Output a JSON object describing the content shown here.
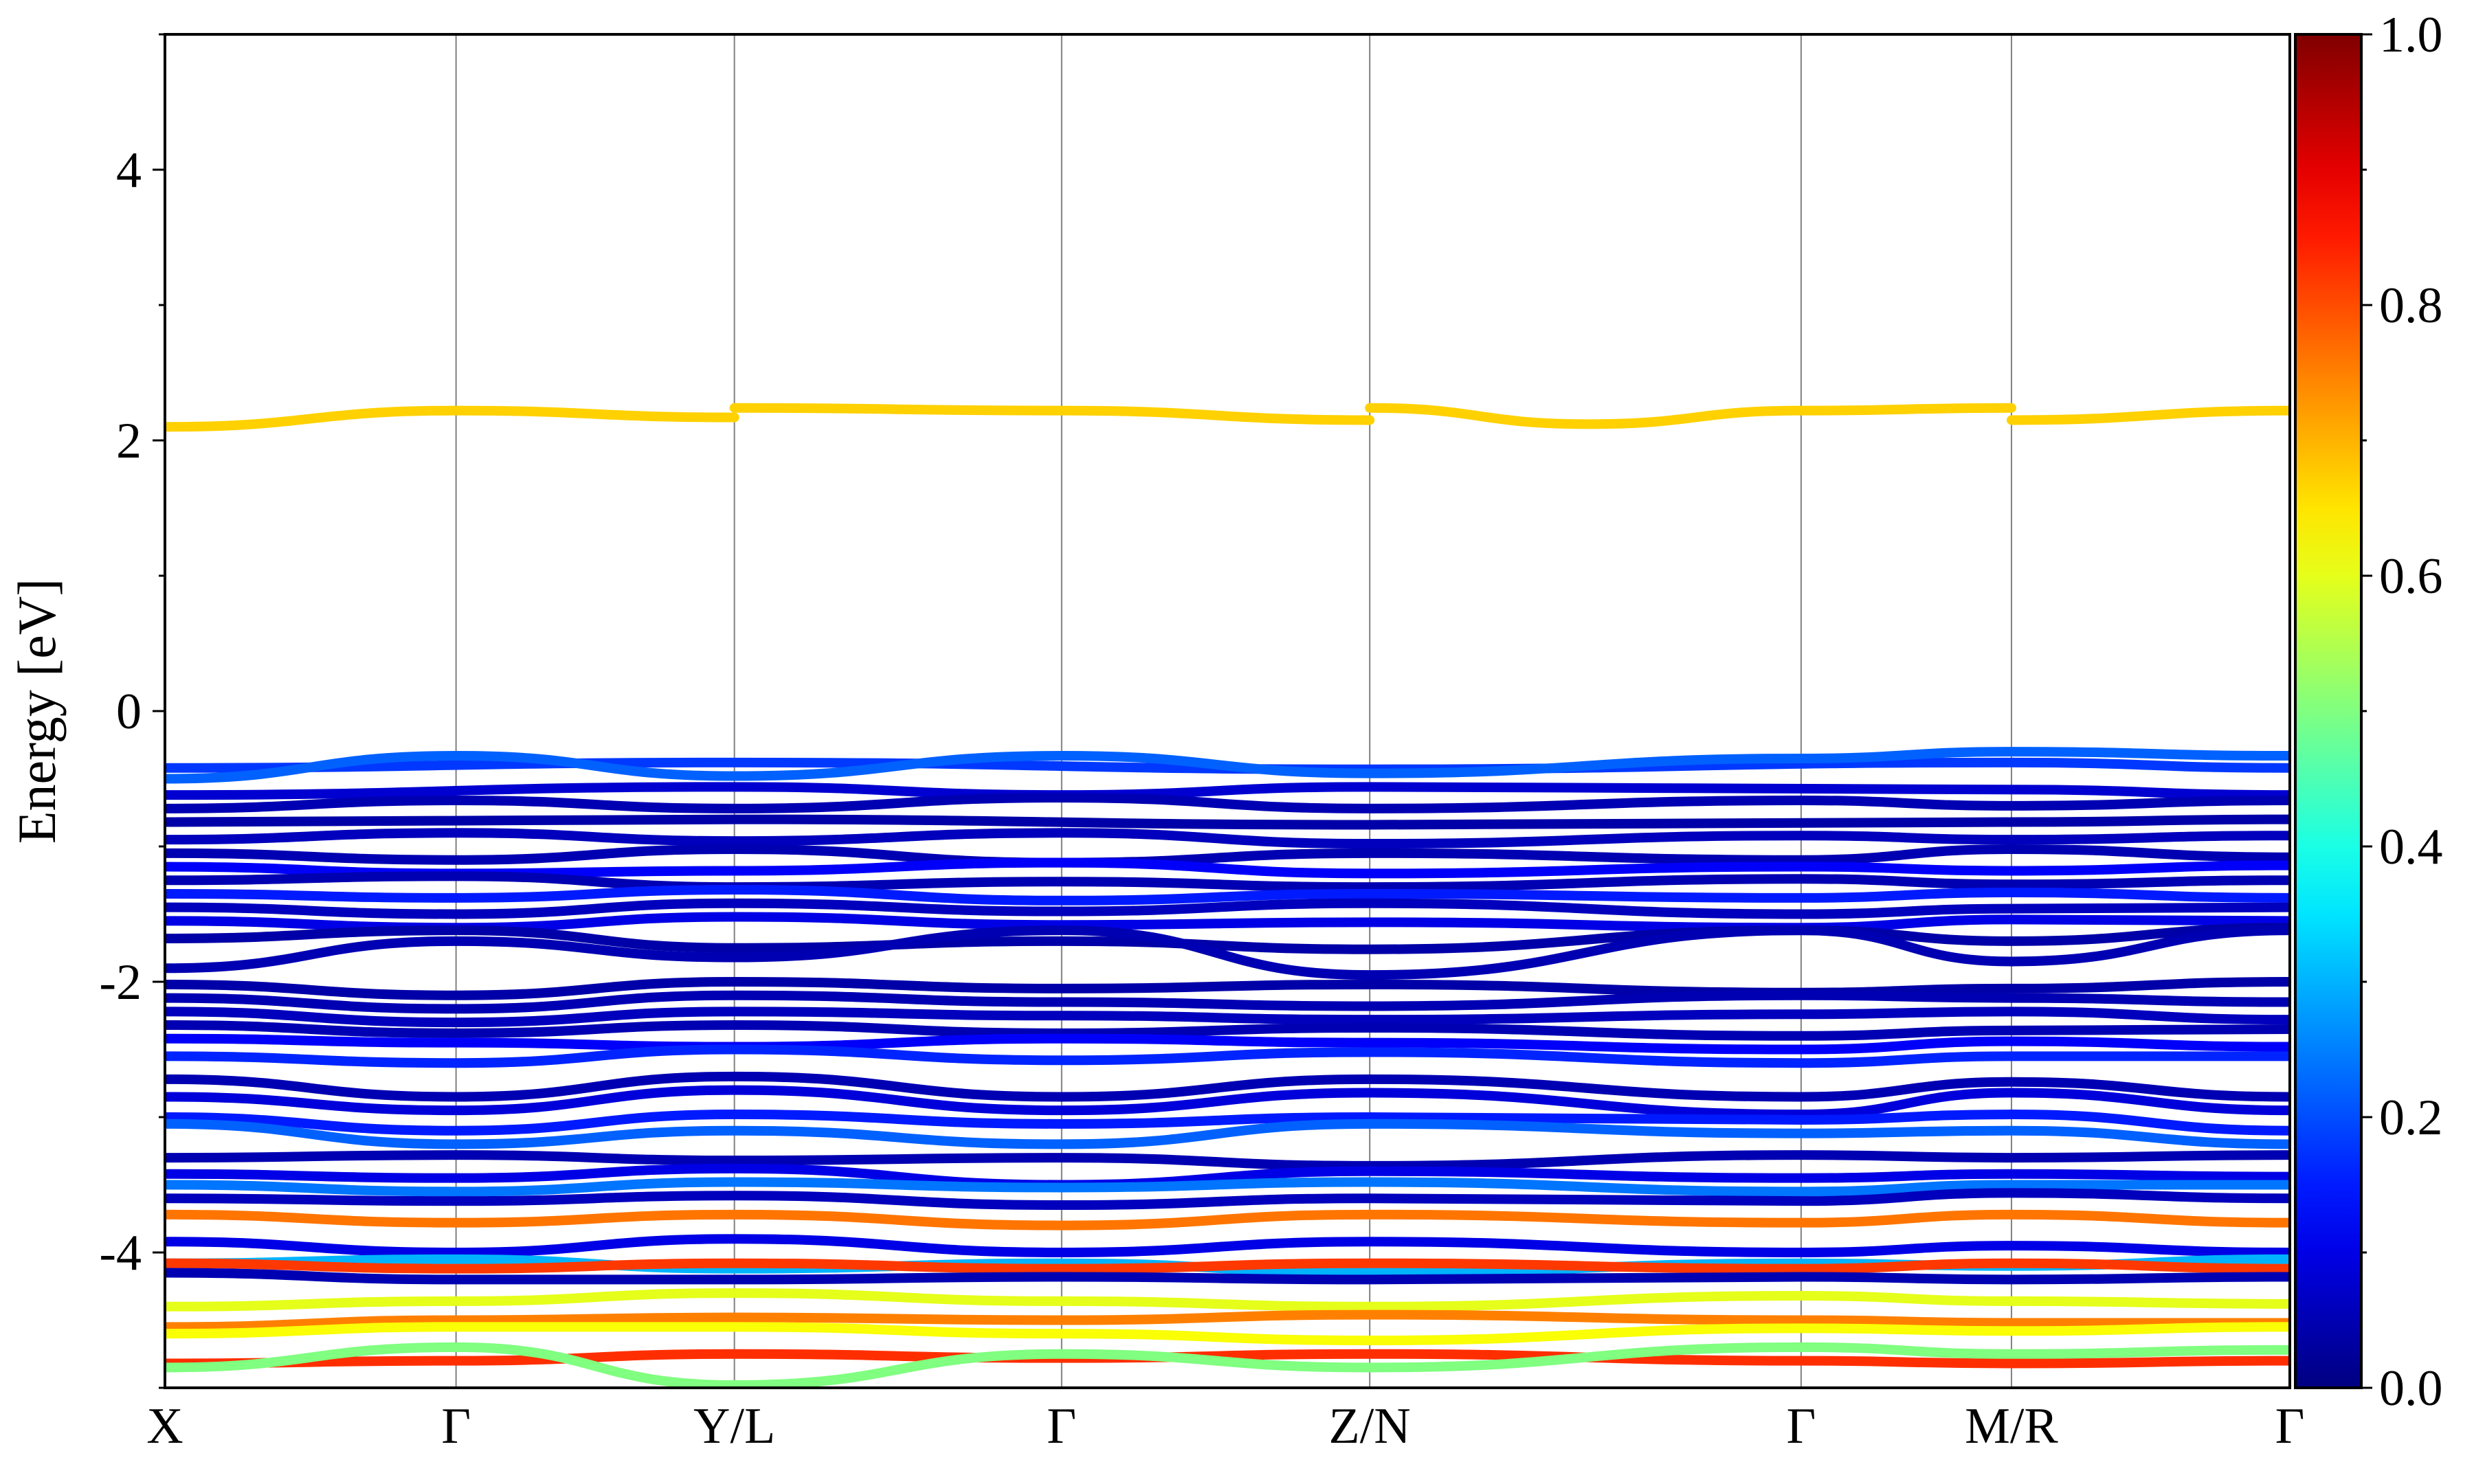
{
  "chart_data": {
    "type": "line",
    "ylabel": "Energy [eV]",
    "ylim": [
      -5,
      5
    ],
    "y_ticks": [
      {
        "value": 4,
        "label": "4"
      },
      {
        "value": 2,
        "label": "2"
      },
      {
        "value": 0,
        "label": "0"
      },
      {
        "value": -2,
        "label": "-2"
      },
      {
        "value": -4,
        "label": "-4"
      }
    ],
    "k_path": [
      "X",
      "Γ",
      "Y/L",
      "Γ",
      "Z/N",
      "Γ",
      "M/R",
      "Γ"
    ],
    "k_positions": [
      0,
      0.137,
      0.268,
      0.422,
      0.567,
      0.77,
      0.869,
      1.0
    ],
    "xlim": [
      0,
      1
    ],
    "grid": "vertical lines at high-symmetry points",
    "colorbar": {
      "colormap": "jet",
      "range": [
        0.0,
        1.0
      ],
      "ticks": [
        {
          "value": 0.0,
          "label": "0.0"
        },
        {
          "value": 0.2,
          "label": "0.2"
        },
        {
          "value": 0.4,
          "label": "0.4"
        },
        {
          "value": 0.6,
          "label": "0.6"
        },
        {
          "value": 0.8,
          "label": "0.8"
        },
        {
          "value": 1.0,
          "label": "1.0"
        }
      ]
    },
    "series": [
      {
        "x": [
          0,
          0.137,
          0.268
        ],
        "y": [
          2.1,
          2.22,
          2.17
        ],
        "weight": 0.67
      },
      {
        "x": [
          0.268,
          0.422,
          0.567
        ],
        "y": [
          2.24,
          2.22,
          2.15
        ],
        "weight": 0.67
      },
      {
        "x": [
          0.567,
          0.67,
          0.77,
          0.869
        ],
        "y": [
          2.24,
          2.12,
          2.22,
          2.24
        ],
        "weight": 0.67
      },
      {
        "x": [
          0.869,
          1.0
        ],
        "y": [
          2.15,
          2.22
        ],
        "weight": 0.67
      },
      {
        "x": [
          0,
          0.268,
          0.567,
          0.869,
          1.0
        ],
        "y": [
          -0.42,
          -0.38,
          -0.43,
          -0.38,
          -0.42
        ],
        "weight": 0.18
      },
      {
        "x": [
          0,
          0.137,
          0.268,
          0.422,
          0.567,
          0.77,
          0.869,
          1.0
        ],
        "y": [
          -0.5,
          -0.33,
          -0.48,
          -0.33,
          -0.46,
          -0.35,
          -0.3,
          -0.33
        ],
        "weight": 0.22
      },
      {
        "x": [
          0,
          0.268,
          0.422,
          0.567,
          0.869,
          1.0
        ],
        "y": [
          -0.62,
          -0.56,
          -0.62,
          -0.56,
          -0.58,
          -0.62
        ],
        "weight": 0.08
      },
      {
        "x": [
          0,
          0.137,
          0.268,
          0.422,
          0.567,
          0.77,
          0.869,
          1.0
        ],
        "y": [
          -0.72,
          -0.66,
          -0.72,
          -0.64,
          -0.72,
          -0.66,
          -0.7,
          -0.66
        ],
        "weight": 0.05
      },
      {
        "x": [
          0,
          0.268,
          0.567,
          0.869,
          1.0
        ],
        "y": [
          -0.82,
          -0.8,
          -0.84,
          -0.82,
          -0.8
        ],
        "weight": 0.04
      },
      {
        "x": [
          0,
          0.137,
          0.268,
          0.422,
          0.567,
          0.77,
          0.869,
          1.0
        ],
        "y": [
          -0.95,
          -0.9,
          -0.96,
          -0.9,
          -0.98,
          -0.92,
          -0.95,
          -0.92
        ],
        "weight": 0.06
      },
      {
        "x": [
          0,
          0.137,
          0.268,
          0.422,
          0.567,
          0.77,
          0.869,
          1.0
        ],
        "y": [
          -1.05,
          -1.1,
          -1.02,
          -1.12,
          -1.05,
          -1.1,
          -1.02,
          -1.08
        ],
        "weight": 0.05
      },
      {
        "x": [
          0,
          0.137,
          0.268,
          0.422,
          0.567,
          0.77,
          0.869,
          1.0
        ],
        "y": [
          -1.15,
          -1.2,
          -1.18,
          -1.12,
          -1.2,
          -1.15,
          -1.18,
          -1.14
        ],
        "weight": 0.12
      },
      {
        "x": [
          0,
          0.137,
          0.268,
          0.422,
          0.567,
          0.77,
          0.869,
          1.0
        ],
        "y": [
          -1.25,
          -1.22,
          -1.3,
          -1.26,
          -1.3,
          -1.24,
          -1.28,
          -1.25
        ],
        "weight": 0.05
      },
      {
        "x": [
          0,
          0.137,
          0.268,
          0.422,
          0.567,
          0.77,
          0.869,
          1.0
        ],
        "y": [
          -1.35,
          -1.38,
          -1.32,
          -1.4,
          -1.35,
          -1.38,
          -1.34,
          -1.38
        ],
        "weight": 0.15
      },
      {
        "x": [
          0,
          0.137,
          0.268,
          0.422,
          0.567,
          0.77,
          0.869,
          1.0
        ],
        "y": [
          -1.45,
          -1.5,
          -1.42,
          -1.48,
          -1.42,
          -1.5,
          -1.46,
          -1.45
        ],
        "weight": 0.06
      },
      {
        "x": [
          0,
          0.137,
          0.268,
          0.422,
          0.567,
          0.77,
          0.869,
          1.0
        ],
        "y": [
          -1.55,
          -1.6,
          -1.52,
          -1.58,
          -1.56,
          -1.6,
          -1.54,
          -1.55
        ],
        "weight": 0.1
      },
      {
        "x": [
          0,
          0.137,
          0.268,
          0.422,
          0.567,
          0.77,
          0.869,
          1.0
        ],
        "y": [
          -1.68,
          -1.62,
          -1.75,
          -1.7,
          -1.76,
          -1.62,
          -1.7,
          -1.6
        ],
        "weight": 0.04
      },
      {
        "x": [
          0,
          0.137,
          0.268,
          0.422,
          0.567,
          0.77,
          0.869,
          1.0
        ],
        "y": [
          -1.9,
          -1.7,
          -1.82,
          -1.62,
          -1.95,
          -1.62,
          -1.85,
          -1.62
        ],
        "weight": 0.05
      },
      {
        "x": [
          0,
          0.137,
          0.268,
          0.422,
          0.567,
          0.77,
          0.869,
          1.0
        ],
        "y": [
          -2.02,
          -2.1,
          -2.0,
          -2.05,
          -2.02,
          -2.08,
          -2.05,
          -2.0
        ],
        "weight": 0.04
      },
      {
        "x": [
          0,
          0.137,
          0.268,
          0.422,
          0.567,
          0.77,
          0.869,
          1.0
        ],
        "y": [
          -2.12,
          -2.2,
          -2.1,
          -2.15,
          -2.18,
          -2.1,
          -2.12,
          -2.15
        ],
        "weight": 0.05
      },
      {
        "x": [
          0,
          0.137,
          0.268,
          0.422,
          0.567,
          0.77,
          0.869,
          1.0
        ],
        "y": [
          -2.22,
          -2.3,
          -2.22,
          -2.25,
          -2.28,
          -2.24,
          -2.22,
          -2.28
        ],
        "weight": 0.06
      },
      {
        "x": [
          0,
          0.137,
          0.268,
          0.422,
          0.567,
          0.77,
          0.869,
          1.0
        ],
        "y": [
          -2.32,
          -2.38,
          -2.32,
          -2.38,
          -2.34,
          -2.4,
          -2.36,
          -2.35
        ],
        "weight": 0.05
      },
      {
        "x": [
          0,
          0.137,
          0.268,
          0.422,
          0.567,
          0.77,
          0.869,
          1.0
        ],
        "y": [
          -2.42,
          -2.45,
          -2.48,
          -2.42,
          -2.45,
          -2.5,
          -2.44,
          -2.48
        ],
        "weight": 0.12
      },
      {
        "x": [
          0,
          0.137,
          0.268,
          0.422,
          0.567,
          0.77,
          0.869,
          1.0
        ],
        "y": [
          -2.55,
          -2.6,
          -2.5,
          -2.58,
          -2.52,
          -2.6,
          -2.55,
          -2.55
        ],
        "weight": 0.16
      },
      {
        "x": [
          0,
          0.137,
          0.268,
          0.422,
          0.567,
          0.77,
          0.869,
          1.0
        ],
        "y": [
          -2.72,
          -2.85,
          -2.7,
          -2.85,
          -2.72,
          -2.85,
          -2.74,
          -2.85
        ],
        "weight": 0.05
      },
      {
        "x": [
          0,
          0.137,
          0.268,
          0.422,
          0.567,
          0.77,
          0.869,
          1.0
        ],
        "y": [
          -2.85,
          -2.95,
          -2.8,
          -2.95,
          -2.82,
          -2.98,
          -2.82,
          -2.95
        ],
        "weight": 0.09
      },
      {
        "x": [
          0,
          0.137,
          0.268,
          0.422,
          0.567,
          0.77,
          0.869,
          1.0
        ],
        "y": [
          -3.0,
          -3.1,
          -2.98,
          -3.05,
          -3.0,
          -3.02,
          -2.98,
          -3.1
        ],
        "weight": 0.15
      },
      {
        "x": [
          0,
          0.137,
          0.268,
          0.422,
          0.567,
          0.77,
          0.869,
          1.0
        ],
        "y": [
          -3.05,
          -3.2,
          -3.1,
          -3.2,
          -3.05,
          -3.12,
          -3.1,
          -3.2
        ],
        "weight": 0.22
      },
      {
        "x": [
          0,
          0.137,
          0.268,
          0.422,
          0.567,
          0.77,
          0.869,
          1.0
        ],
        "y": [
          -3.3,
          -3.28,
          -3.32,
          -3.3,
          -3.36,
          -3.28,
          -3.3,
          -3.28
        ],
        "weight": 0.05
      },
      {
        "x": [
          0,
          0.137,
          0.268,
          0.422,
          0.567,
          0.77,
          0.869,
          1.0
        ],
        "y": [
          -3.42,
          -3.45,
          -3.38,
          -3.5,
          -3.4,
          -3.45,
          -3.42,
          -3.44
        ],
        "weight": 0.1
      },
      {
        "x": [
          0,
          0.137,
          0.268,
          0.422,
          0.567,
          0.77,
          0.869,
          1.0
        ],
        "y": [
          -3.5,
          -3.55,
          -3.48,
          -3.52,
          -3.48,
          -3.55,
          -3.5,
          -3.5
        ],
        "weight": 0.24
      },
      {
        "x": [
          0,
          0.137,
          0.268,
          0.422,
          0.567,
          0.77,
          0.869,
          1.0
        ],
        "y": [
          -3.6,
          -3.62,
          -3.58,
          -3.65,
          -3.6,
          -3.62,
          -3.56,
          -3.6
        ],
        "weight": 0.06
      },
      {
        "x": [
          0,
          0.137,
          0.268,
          0.422,
          0.567,
          0.77,
          0.869,
          1.0
        ],
        "y": [
          -3.72,
          -3.78,
          -3.72,
          -3.8,
          -3.72,
          -3.78,
          -3.72,
          -3.78
        ],
        "weight": 0.76
      },
      {
        "x": [
          0,
          0.137,
          0.268,
          0.422,
          0.567,
          0.77,
          0.869,
          1.0
        ],
        "y": [
          -3.92,
          -4.0,
          -3.9,
          -4.0,
          -3.92,
          -4.0,
          -3.95,
          -4.0
        ],
        "weight": 0.1
      },
      {
        "x": [
          0,
          0.137,
          0.268,
          0.422,
          0.567,
          0.77,
          0.869,
          1.0
        ],
        "y": [
          -4.08,
          -4.05,
          -4.12,
          -4.08,
          -4.15,
          -4.08,
          -4.1,
          -4.05
        ],
        "weight": 0.3
      },
      {
        "x": [
          0,
          0.137,
          0.268,
          0.422,
          0.567,
          0.77,
          0.869,
          1.0
        ],
        "y": [
          -4.08,
          -4.12,
          -4.08,
          -4.12,
          -4.08,
          -4.12,
          -4.08,
          -4.12
        ],
        "weight": 0.82
      },
      {
        "x": [
          0,
          0.137,
          0.268,
          0.422,
          0.567,
          0.77,
          0.869,
          1.0
        ],
        "y": [
          -4.15,
          -4.2,
          -4.2,
          -4.18,
          -4.2,
          -4.18,
          -4.2,
          -4.18
        ],
        "weight": 0.05
      },
      {
        "x": [
          0,
          0.137,
          0.268,
          0.422,
          0.567,
          0.77,
          0.869,
          1.0
        ],
        "y": [
          -4.4,
          -4.36,
          -4.3,
          -4.36,
          -4.4,
          -4.32,
          -4.36,
          -4.38
        ],
        "weight": 0.6
      },
      {
        "x": [
          0,
          0.137,
          0.268,
          0.422,
          0.567,
          0.77,
          0.869,
          1.0
        ],
        "y": [
          -4.55,
          -4.5,
          -4.48,
          -4.5,
          -4.46,
          -4.5,
          -4.52,
          -4.52
        ],
        "weight": 0.75
      },
      {
        "x": [
          0,
          0.137,
          0.268,
          0.422,
          0.567,
          0.77,
          0.869,
          1.0
        ],
        "y": [
          -4.6,
          -4.55,
          -4.55,
          -4.6,
          -4.65,
          -4.56,
          -4.58,
          -4.55
        ],
        "weight": 0.62
      },
      {
        "x": [
          0,
          0.137,
          0.268,
          0.422,
          0.567,
          0.77,
          0.869,
          1.0
        ],
        "y": [
          -4.82,
          -4.8,
          -4.75,
          -4.78,
          -4.75,
          -4.8,
          -4.82,
          -4.8
        ],
        "weight": 0.83
      },
      {
        "x": [
          0,
          0.137,
          0.268,
          0.422,
          0.567,
          0.77,
          0.869,
          1.0
        ],
        "y": [
          -4.85,
          -4.7,
          -4.98,
          -4.75,
          -4.85,
          -4.7,
          -4.75,
          -4.72
        ],
        "weight": 0.5
      }
    ]
  }
}
